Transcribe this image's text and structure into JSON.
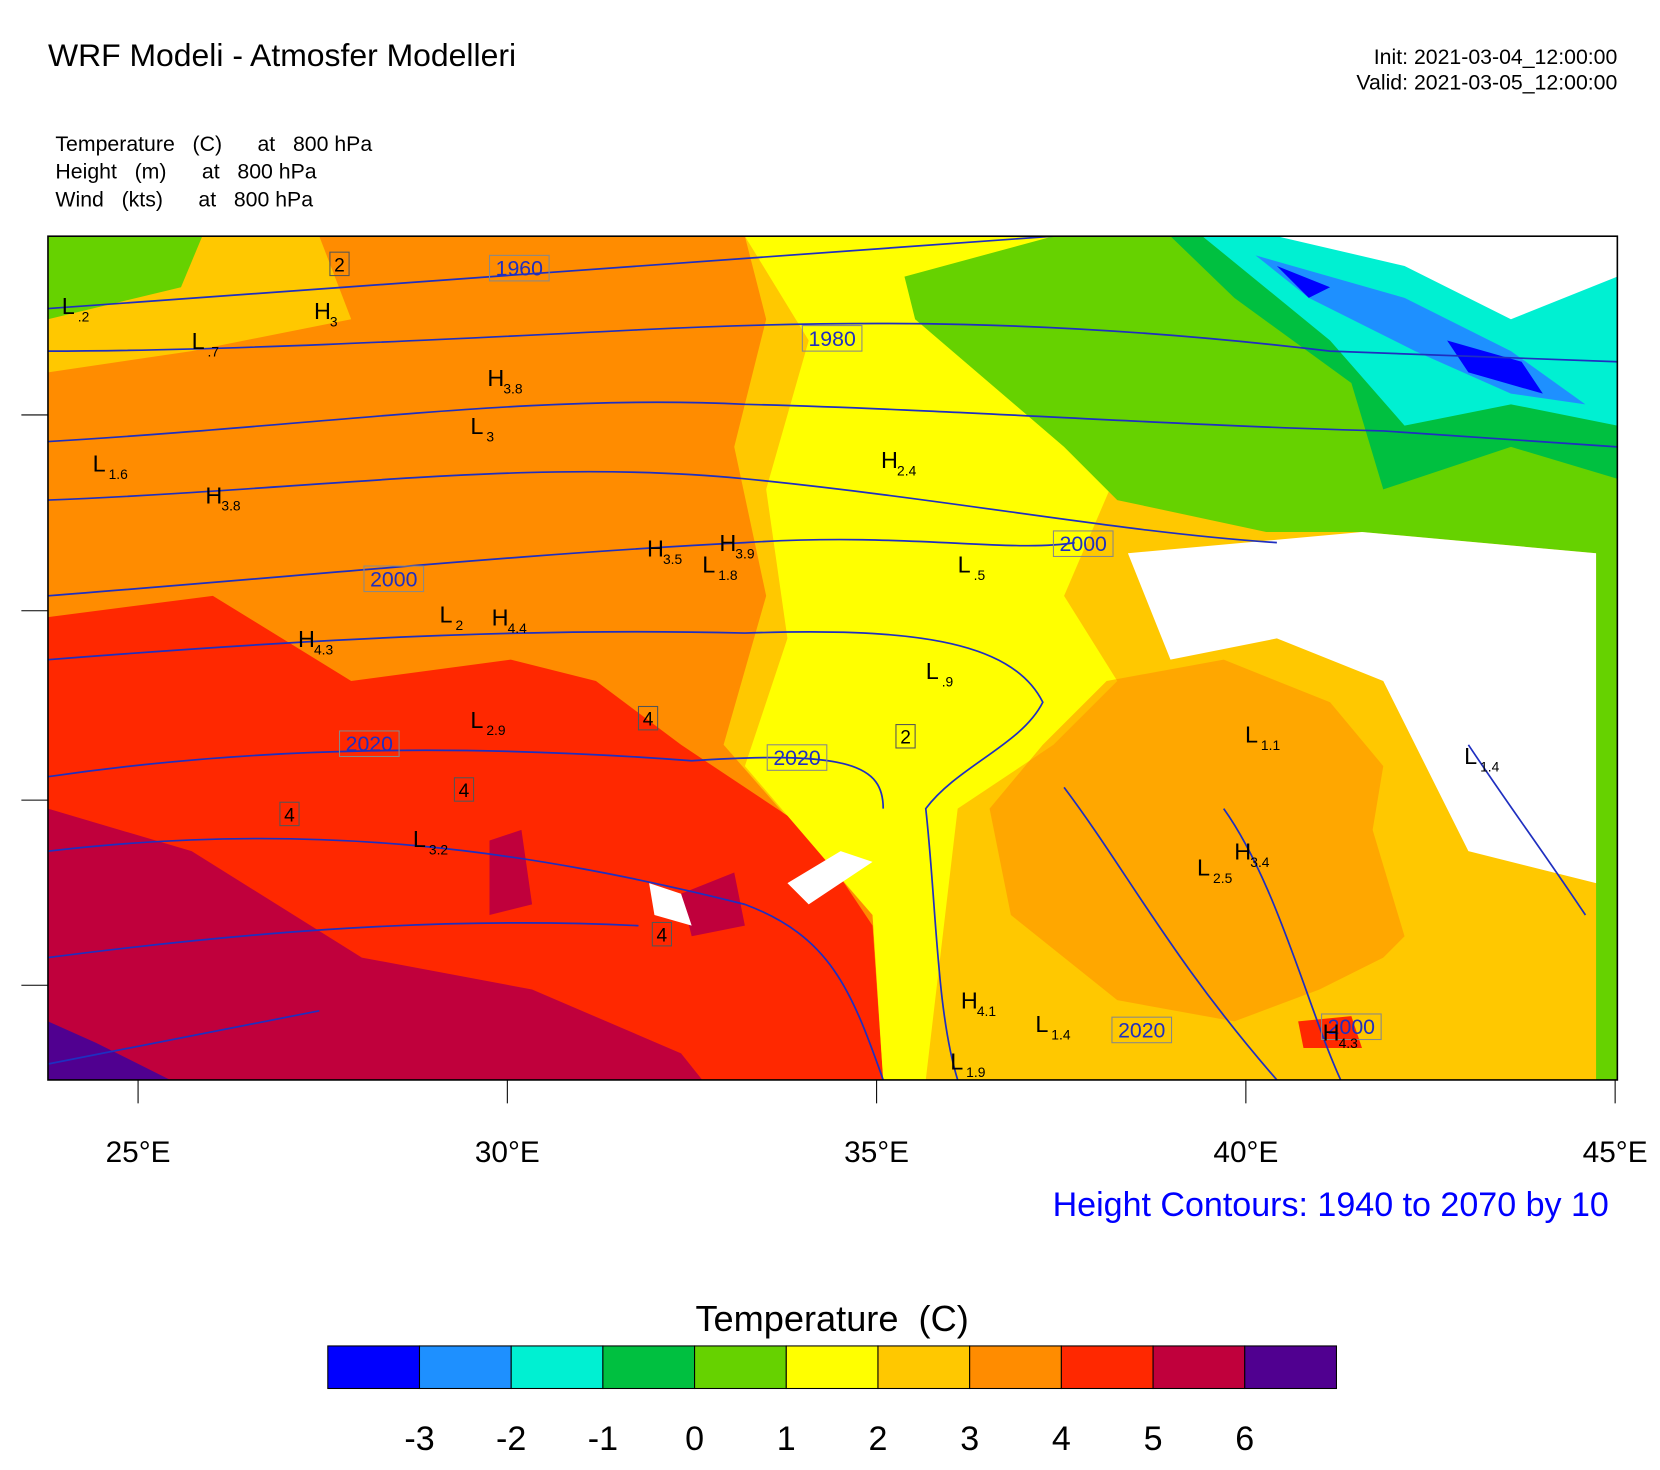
{
  "header": {
    "title": "WRF Modeli - Atmosfer Modelleri",
    "init": "Init: 2021-03-04_12:00:00",
    "valid": "Valid: 2021-03-05_12:00:00"
  },
  "fields": [
    "Temperature   (C)      at   800 hPa",
    "Height   (m)      at   800 hPa",
    "Wind   (kts)      at   800 hPa"
  ],
  "map": {
    "xlim": [
      23.78,
      45.03
    ],
    "xticks": [
      {
        "value": 25,
        "label": "25°E"
      },
      {
        "value": 30,
        "label": "30°E"
      },
      {
        "value": 35,
        "label": "35°E"
      },
      {
        "value": 40,
        "label": "40°E"
      },
      {
        "value": 45,
        "label": "45°E"
      }
    ],
    "contour_labels": [
      "1960",
      "1980",
      "2000",
      "2000",
      "2020",
      "2020",
      "2020",
      "2000"
    ],
    "box_labels": [
      "2",
      "4",
      "4",
      "2",
      "4",
      "4"
    ],
    "centers": [
      {
        "letter": "L",
        "sub": ".2"
      },
      {
        "letter": "L",
        "sub": ".7"
      },
      {
        "letter": "H",
        "sub": "3"
      },
      {
        "letter": "H",
        "sub": "3.8"
      },
      {
        "letter": "L",
        "sub": "3"
      },
      {
        "letter": "L",
        "sub": "1.6"
      },
      {
        "letter": "H",
        "sub": "3.8"
      },
      {
        "letter": "H",
        "sub": "2.4"
      },
      {
        "letter": "H",
        "sub": "3.5"
      },
      {
        "letter": "H",
        "sub": "3.9"
      },
      {
        "letter": "L",
        "sub": "1.8"
      },
      {
        "letter": "L",
        "sub": ".5"
      },
      {
        "letter": "L",
        "sub": "2"
      },
      {
        "letter": "H",
        "sub": "4.4"
      },
      {
        "letter": "H",
        "sub": "4.3"
      },
      {
        "letter": "L",
        "sub": ".9"
      },
      {
        "letter": "L",
        "sub": "2.9"
      },
      {
        "letter": "L",
        "sub": "1.1"
      },
      {
        "letter": "L",
        "sub": "1.4"
      },
      {
        "letter": "L",
        "sub": "3.2"
      },
      {
        "letter": "L",
        "sub": "2.5"
      },
      {
        "letter": "H",
        "sub": "3.4"
      },
      {
        "letter": "H",
        "sub": "4.1"
      },
      {
        "letter": "L",
        "sub": "1.4"
      },
      {
        "letter": "L",
        "sub": "1.9"
      },
      {
        "letter": "H",
        "sub": "4.3"
      }
    ]
  },
  "contour_caption": "Height Contours: 1940 to 2070 by 10",
  "colorbar": {
    "title": "Temperature  (C)",
    "colors": [
      "#0000ff",
      "#1e90ff",
      "#00f0d2",
      "#00c040",
      "#66d200",
      "#ffff00",
      "#ffc800",
      "#ff8c00",
      "#ff2800",
      "#c0003c",
      "#500090"
    ],
    "ticks": [
      -3,
      -2,
      -1,
      0,
      1,
      2,
      3,
      4,
      5,
      6
    ]
  }
}
